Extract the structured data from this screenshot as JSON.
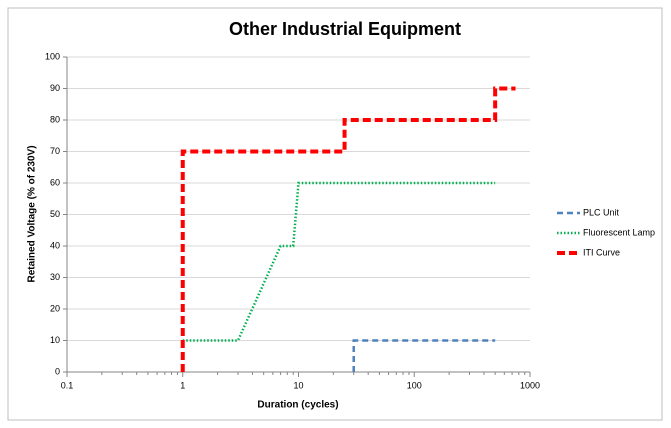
{
  "chart_data": {
    "type": "line",
    "title": "Other Industrial Equipment",
    "x_label": "Duration (cycles)",
    "y_label": "Retained Voltage (% of 230V)",
    "x_log": true,
    "grid": true,
    "legend": "right",
    "xlim": [
      0.1,
      1000
    ],
    "xticks": [
      0.1,
      1,
      10,
      100,
      1000
    ],
    "ylim": [
      0,
      100
    ],
    "yticks": [
      0,
      10,
      20,
      30,
      40,
      50,
      60,
      70,
      80,
      90,
      100
    ],
    "series": [
      {
        "name": "PLC Unit",
        "color": "#4f81bd",
        "dash": "6,4",
        "width": 2.5,
        "x": [
          30,
          30,
          500
        ],
        "values": [
          0,
          10,
          10
        ]
      },
      {
        "name": "Fluorescent Lamp",
        "color": "#00b050",
        "dash": "1.5,2",
        "width": 2.5,
        "x": [
          1,
          3,
          7,
          9,
          10,
          500
        ],
        "values": [
          10,
          10,
          40,
          40,
          60,
          60
        ]
      },
      {
        "name": "ITI Curve",
        "color": "#ff0000",
        "dash": "8,4",
        "width": 4,
        "x": [
          1,
          1,
          25,
          25,
          500,
          500,
          750
        ],
        "values": [
          0,
          70,
          70,
          80,
          80,
          90,
          90
        ]
      }
    ]
  }
}
